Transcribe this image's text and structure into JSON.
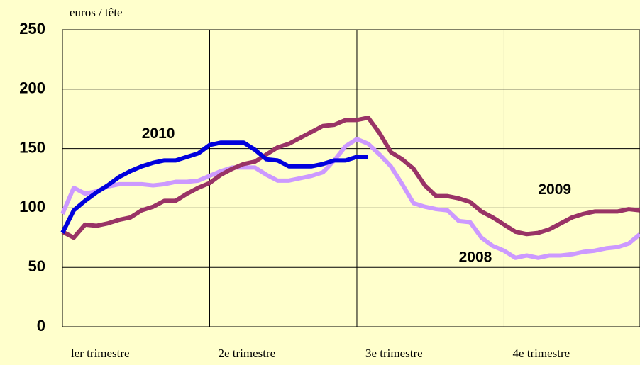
{
  "chart_data": {
    "type": "line",
    "y_unit_label": "euros / tête",
    "x": [
      0,
      1,
      2,
      3,
      4,
      5,
      6,
      7,
      8,
      9,
      10,
      11,
      12,
      13,
      14,
      15,
      16,
      17,
      18,
      19,
      20,
      21,
      22,
      23,
      24,
      25,
      26,
      27,
      28,
      29,
      30,
      31,
      32,
      33,
      34,
      35,
      36,
      37,
      38,
      39,
      40,
      41,
      42,
      43,
      44,
      45,
      46,
      47,
      48,
      49,
      50,
      51
    ],
    "series": [
      {
        "name": "2008",
        "color": "#cc99ff",
        "values": [
          95,
          117,
          112,
          114,
          118,
          120,
          120,
          120,
          119,
          120,
          122,
          122,
          123,
          127,
          131,
          134,
          134,
          134,
          128,
          123,
          123,
          125,
          127,
          130,
          140,
          152,
          158,
          154,
          145,
          135,
          120,
          104,
          101,
          99,
          98,
          89,
          88,
          75,
          68,
          64,
          58,
          60,
          58,
          60,
          60,
          61,
          63,
          64,
          66,
          67,
          70,
          78
        ]
      },
      {
        "name": "2009",
        "color": "#993366",
        "values": [
          80,
          75,
          86,
          85,
          87,
          90,
          92,
          98,
          101,
          106,
          106,
          112,
          117,
          121,
          128,
          133,
          137,
          139,
          145,
          151,
          154,
          159,
          164,
          169,
          170,
          174,
          174,
          176,
          163,
          147,
          141,
          133,
          119,
          110,
          110,
          108,
          105,
          97,
          92,
          86,
          80,
          78,
          79,
          82,
          87,
          92,
          95,
          97,
          97,
          97,
          99,
          98
        ]
      },
      {
        "name": "2010",
        "color": "#0000dd",
        "values": [
          79,
          98,
          106,
          113,
          119,
          126,
          131,
          135,
          138,
          140,
          140,
          143,
          146,
          153,
          155,
          155,
          155,
          149,
          141,
          140,
          135,
          135,
          135,
          137,
          140,
          140,
          143,
          143,
          null,
          null,
          null,
          null,
          null,
          null,
          null,
          null,
          null,
          null,
          null,
          null,
          null,
          null,
          null,
          null,
          null,
          null,
          null,
          null,
          null,
          null,
          null,
          null
        ]
      }
    ],
    "xlim": [
      0,
      51
    ],
    "xticks": [
      {
        "value": 0,
        "label": "ler trimestre"
      },
      {
        "value": 13,
        "label": "2e trimestre"
      },
      {
        "value": 26,
        "label": "3e trimestre"
      },
      {
        "value": 39,
        "label": "4e trimestre"
      }
    ],
    "ylim": [
      0,
      250
    ],
    "yticks": [
      0,
      50,
      100,
      150,
      200,
      250
    ],
    "grid": true
  }
}
